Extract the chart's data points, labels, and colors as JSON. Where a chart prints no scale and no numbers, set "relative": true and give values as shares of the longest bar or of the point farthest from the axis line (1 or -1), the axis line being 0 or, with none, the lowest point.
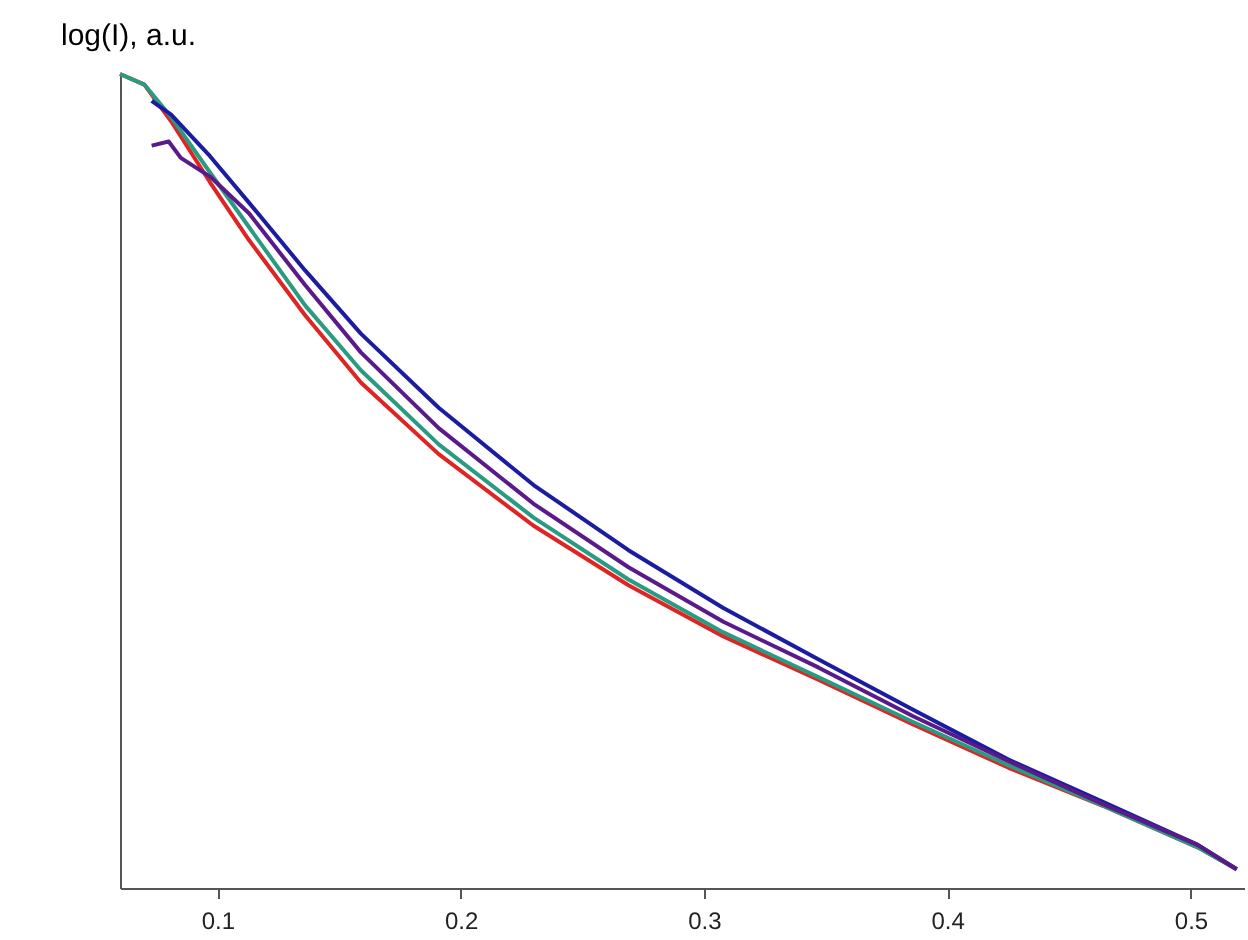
{
  "chart_data": {
    "type": "line",
    "ylabel": "log(I), a.u.",
    "relative": true,
    "grid": false,
    "legend": false,
    "marker": "none",
    "line_style": "solid",
    "xlim": [
      0.06,
      0.522
    ],
    "xticks": [
      0.1,
      0.2,
      0.3,
      0.4,
      0.5
    ],
    "series": [
      {
        "color": "#e02424",
        "x": [
          0.06,
          0.07,
          0.081,
          0.097,
          0.113,
          0.136,
          0.159,
          0.191,
          0.23,
          0.269,
          0.308,
          0.347,
          0.386,
          0.425,
          0.464,
          0.503,
          0.519
        ],
        "values": [
          1.0,
          0.987,
          0.942,
          0.867,
          0.796,
          0.704,
          0.621,
          0.533,
          0.445,
          0.372,
          0.309,
          0.256,
          0.201,
          0.148,
          0.101,
          0.05,
          0.023
        ]
      },
      {
        "color": "#2a9a80",
        "x": [
          0.06,
          0.07,
          0.081,
          0.097,
          0.113,
          0.136,
          0.159,
          0.191,
          0.23,
          0.269,
          0.308,
          0.347,
          0.386,
          0.425,
          0.464,
          0.503,
          0.519
        ],
        "values": [
          1.0,
          0.987,
          0.947,
          0.879,
          0.812,
          0.716,
          0.636,
          0.545,
          0.455,
          0.379,
          0.314,
          0.259,
          0.204,
          0.151,
          0.101,
          0.05,
          0.023
        ]
      },
      {
        "color": "#1c1ca0",
        "x": [
          0.073,
          0.081,
          0.097,
          0.113,
          0.136,
          0.159,
          0.191,
          0.23,
          0.269,
          0.308,
          0.347,
          0.386,
          0.425,
          0.464,
          0.503,
          0.519
        ],
        "values": [
          0.967,
          0.95,
          0.899,
          0.842,
          0.759,
          0.681,
          0.59,
          0.495,
          0.415,
          0.344,
          0.281,
          0.219,
          0.158,
          0.106,
          0.053,
          0.023
        ]
      },
      {
        "color": "#5a1a8a",
        "x": [
          0.073,
          0.08,
          0.085,
          0.097,
          0.113,
          0.136,
          0.159,
          0.191,
          0.23,
          0.269,
          0.308,
          0.347,
          0.386,
          0.425,
          0.464,
          0.503,
          0.519
        ],
        "values": [
          0.912,
          0.917,
          0.897,
          0.874,
          0.829,
          0.741,
          0.658,
          0.565,
          0.472,
          0.394,
          0.327,
          0.271,
          0.211,
          0.156,
          0.103,
          0.053,
          0.023
        ]
      }
    ]
  }
}
